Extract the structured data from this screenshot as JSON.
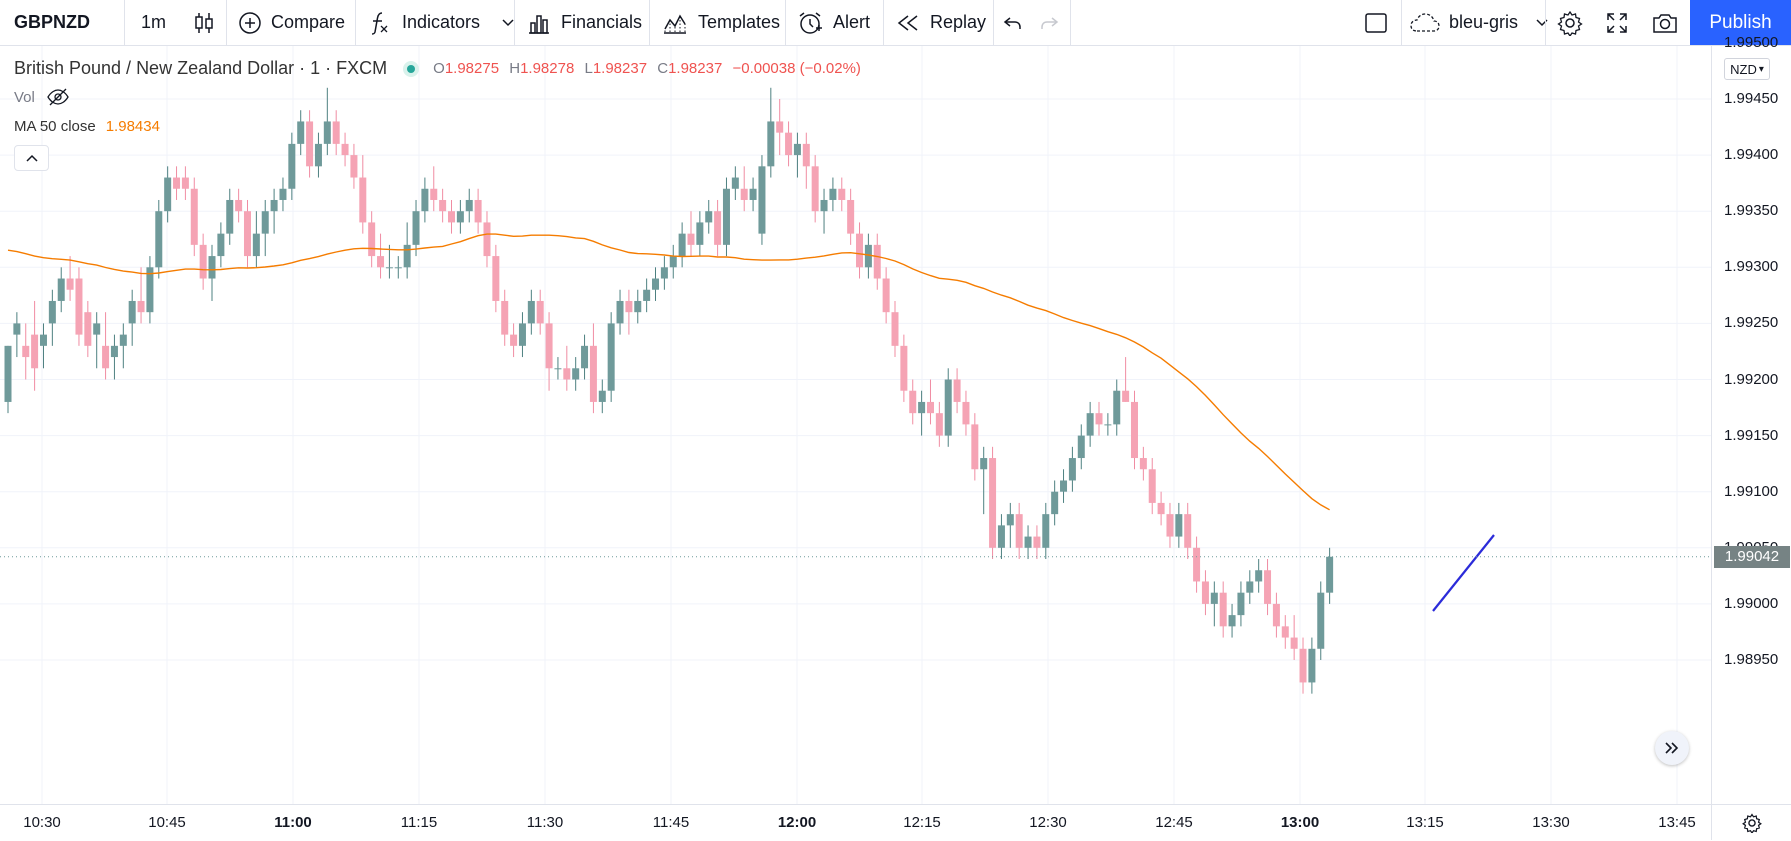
{
  "toolbar": {
    "symbol": "GBPNZD",
    "interval": "1m",
    "compare": "Compare",
    "indicators": "Indicators",
    "financials": "Financials",
    "templates": "Templates",
    "alert": "Alert",
    "replay": "Replay",
    "layout_name": "bleu-gris",
    "publish": "Publish"
  },
  "legend": {
    "title": "British Pound / New Zealand Dollar · 1 · FXCM",
    "o_label": "O",
    "o_value": "1.98275",
    "h_label": "H",
    "h_value": "1.98278",
    "l_label": "L",
    "l_value": "1.98237",
    "c_label": "C",
    "c_value": "1.98237",
    "change": "−0.00038 (−0.02%)",
    "vol_label": "Vol",
    "ma_label": "MA 50 close",
    "ma_value": "1.98434"
  },
  "price_axis": {
    "currency": "NZD",
    "current_price": "1.99042",
    "ticks": [
      "1.99500",
      "1.99450",
      "1.99400",
      "1.99350",
      "1.99300",
      "1.99250",
      "1.99200",
      "1.99150",
      "1.99100",
      "1.99050",
      "1.99000",
      "1.98950"
    ]
  },
  "time_axis": {
    "ticks": [
      "10:30",
      "10:45",
      "11:00",
      "11:15",
      "11:30",
      "11:45",
      "12:00",
      "12:15",
      "12:30",
      "12:45",
      "13:00",
      "13:15",
      "13:30",
      "13:45"
    ],
    "bold": [
      "11:00",
      "12:00",
      "13:00"
    ]
  },
  "colors": {
    "up": "#6f9a9a",
    "down": "#f5a3b4",
    "ma": "#f57c00",
    "drawing": "#2b2bd9",
    "accent": "#2962ff"
  },
  "chart_data": {
    "type": "candlestick",
    "x_label_interval": "1 minute",
    "ylim": [
      1.9889,
      1.9953
    ],
    "series": [
      {
        "name": "GBPNZD",
        "values": [
          [
            1.9918,
            1.9923,
            1.9917,
            1.9923
          ],
          [
            1.9924,
            1.9926,
            1.9922,
            1.9925
          ],
          [
            1.9923,
            1.9925,
            1.992,
            1.9922
          ],
          [
            1.9924,
            1.9927,
            1.9919,
            1.9921
          ],
          [
            1.9923,
            1.9925,
            1.9921,
            1.9924
          ],
          [
            1.9925,
            1.9928,
            1.9923,
            1.9927
          ],
          [
            1.9927,
            1.993,
            1.9926,
            1.9929
          ],
          [
            1.9929,
            1.9931,
            1.9927,
            1.9928
          ],
          [
            1.9929,
            1.993,
            1.9923,
            1.9924
          ],
          [
            1.9926,
            1.9927,
            1.9922,
            1.9923
          ],
          [
            1.9924,
            1.9926,
            1.9921,
            1.9925
          ],
          [
            1.9923,
            1.9926,
            1.992,
            1.9921
          ],
          [
            1.9922,
            1.9924,
            1.992,
            1.9923
          ],
          [
            1.9923,
            1.9925,
            1.9921,
            1.9924
          ],
          [
            1.9925,
            1.9928,
            1.9923,
            1.9927
          ],
          [
            1.9927,
            1.993,
            1.9925,
            1.9926
          ],
          [
            1.9926,
            1.9931,
            1.9925,
            1.993
          ],
          [
            1.993,
            1.9936,
            1.9929,
            1.9935
          ],
          [
            1.9935,
            1.9939,
            1.9934,
            1.9938
          ],
          [
            1.9938,
            1.9939,
            1.9936,
            1.9937
          ],
          [
            1.9938,
            1.9939,
            1.9936,
            1.9937
          ],
          [
            1.9937,
            1.9938,
            1.9931,
            1.9932
          ],
          [
            1.9932,
            1.9933,
            1.9928,
            1.9929
          ],
          [
            1.9929,
            1.9932,
            1.9927,
            1.9931
          ],
          [
            1.9931,
            1.9934,
            1.993,
            1.9933
          ],
          [
            1.9933,
            1.9937,
            1.9932,
            1.9936
          ],
          [
            1.9936,
            1.9937,
            1.9934,
            1.9935
          ],
          [
            1.9935,
            1.9936,
            1.993,
            1.9931
          ],
          [
            1.9931,
            1.9935,
            1.993,
            1.9933
          ],
          [
            1.9933,
            1.9936,
            1.9931,
            1.9935
          ],
          [
            1.9935,
            1.9937,
            1.9933,
            1.9936
          ],
          [
            1.9936,
            1.9938,
            1.9935,
            1.9937
          ],
          [
            1.9937,
            1.9942,
            1.9936,
            1.9941
          ],
          [
            1.9941,
            1.9944,
            1.994,
            1.9943
          ],
          [
            1.9943,
            1.9944,
            1.9938,
            1.9939
          ],
          [
            1.9939,
            1.9942,
            1.9938,
            1.9941
          ],
          [
            1.9941,
            1.9946,
            1.994,
            1.9943
          ],
          [
            1.9943,
            1.9944,
            1.994,
            1.9941
          ],
          [
            1.9941,
            1.9942,
            1.9939,
            1.994
          ],
          [
            1.994,
            1.9941,
            1.9937,
            1.9938
          ],
          [
            1.9938,
            1.994,
            1.9933,
            1.9934
          ],
          [
            1.9934,
            1.9935,
            1.993,
            1.9931
          ],
          [
            1.9931,
            1.9933,
            1.9929,
            1.993
          ],
          [
            1.993,
            1.9932,
            1.9929,
            1.993
          ],
          [
            1.993,
            1.9931,
            1.9929,
            1.993
          ],
          [
            1.993,
            1.9934,
            1.9929,
            1.9932
          ],
          [
            1.9932,
            1.9936,
            1.9931,
            1.9935
          ],
          [
            1.9935,
            1.9938,
            1.9934,
            1.9937
          ],
          [
            1.9937,
            1.9939,
            1.9935,
            1.9936
          ],
          [
            1.9936,
            1.9937,
            1.9934,
            1.9935
          ],
          [
            1.9935,
            1.9936,
            1.9933,
            1.9934
          ],
          [
            1.9934,
            1.9936,
            1.9933,
            1.9935
          ],
          [
            1.9935,
            1.9937,
            1.9934,
            1.9936
          ],
          [
            1.9936,
            1.9937,
            1.9933,
            1.9934
          ],
          [
            1.9934,
            1.9935,
            1.993,
            1.9931
          ],
          [
            1.9931,
            1.9932,
            1.9926,
            1.9927
          ],
          [
            1.9927,
            1.9928,
            1.9923,
            1.9924
          ],
          [
            1.9924,
            1.9925,
            1.9922,
            1.9923
          ],
          [
            1.9923,
            1.9926,
            1.9922,
            1.9925
          ],
          [
            1.9925,
            1.9928,
            1.9924,
            1.9927
          ],
          [
            1.9927,
            1.9928,
            1.9924,
            1.9925
          ],
          [
            1.9925,
            1.9926,
            1.9919,
            1.9921
          ],
          [
            1.9921,
            1.9922,
            1.992,
            1.9921
          ],
          [
            1.9921,
            1.9923,
            1.9919,
            1.992
          ],
          [
            1.992,
            1.9922,
            1.9919,
            1.9921
          ],
          [
            1.9921,
            1.9924,
            1.992,
            1.9923
          ],
          [
            1.9923,
            1.9925,
            1.9917,
            1.9918
          ],
          [
            1.9918,
            1.992,
            1.9917,
            1.9919
          ],
          [
            1.9919,
            1.9926,
            1.9918,
            1.9925
          ],
          [
            1.9925,
            1.9928,
            1.9924,
            1.9927
          ],
          [
            1.9927,
            1.9928,
            1.9924,
            1.9926
          ],
          [
            1.9926,
            1.9928,
            1.9925,
            1.9927
          ],
          [
            1.9927,
            1.9929,
            1.9926,
            1.9928
          ],
          [
            1.9928,
            1.993,
            1.9927,
            1.9929
          ],
          [
            1.9929,
            1.9931,
            1.9928,
            1.993
          ],
          [
            1.993,
            1.9932,
            1.9929,
            1.9931
          ],
          [
            1.9931,
            1.9934,
            1.993,
            1.9933
          ],
          [
            1.9933,
            1.9935,
            1.9931,
            1.9932
          ],
          [
            1.9932,
            1.9935,
            1.9931,
            1.9934
          ],
          [
            1.9934,
            1.9936,
            1.9933,
            1.9935
          ],
          [
            1.9935,
            1.9936,
            1.9931,
            1.9932
          ],
          [
            1.9932,
            1.9938,
            1.9931,
            1.9937
          ],
          [
            1.9937,
            1.9939,
            1.9936,
            1.9938
          ],
          [
            1.9937,
            1.9939,
            1.9935,
            1.9936
          ],
          [
            1.9936,
            1.9938,
            1.9935,
            1.9937
          ],
          [
            1.9933,
            1.994,
            1.9932,
            1.9939
          ],
          [
            1.9939,
            1.9946,
            1.9938,
            1.9943
          ],
          [
            1.9943,
            1.9945,
            1.994,
            1.9942
          ],
          [
            1.9942,
            1.9943,
            1.9939,
            1.994
          ],
          [
            1.994,
            1.9942,
            1.9938,
            1.9941
          ],
          [
            1.9941,
            1.9942,
            1.9937,
            1.9939
          ],
          [
            1.9939,
            1.994,
            1.9934,
            1.9935
          ],
          [
            1.9935,
            1.9937,
            1.9933,
            1.9936
          ],
          [
            1.9936,
            1.9938,
            1.9935,
            1.9937
          ],
          [
            1.9937,
            1.9938,
            1.9935,
            1.9936
          ],
          [
            1.9936,
            1.9937,
            1.9932,
            1.9933
          ],
          [
            1.9933,
            1.9934,
            1.9929,
            1.993
          ],
          [
            1.993,
            1.9933,
            1.9929,
            1.9932
          ],
          [
            1.9932,
            1.9933,
            1.9928,
            1.9929
          ],
          [
            1.9929,
            1.993,
            1.9925,
            1.9926
          ],
          [
            1.9926,
            1.9927,
            1.9922,
            1.9923
          ],
          [
            1.9923,
            1.9924,
            1.9918,
            1.9919
          ],
          [
            1.9919,
            1.992,
            1.9916,
            1.9917
          ],
          [
            1.9917,
            1.9919,
            1.9915,
            1.9918
          ],
          [
            1.9918,
            1.992,
            1.9916,
            1.9917
          ],
          [
            1.9917,
            1.9918,
            1.9914,
            1.9915
          ],
          [
            1.9915,
            1.9921,
            1.9914,
            1.992
          ],
          [
            1.992,
            1.9921,
            1.9917,
            1.9918
          ],
          [
            1.9918,
            1.9919,
            1.9915,
            1.9916
          ],
          [
            1.9916,
            1.9917,
            1.9911,
            1.9912
          ],
          [
            1.9912,
            1.9914,
            1.9908,
            1.9913
          ],
          [
            1.9913,
            1.9914,
            1.9904,
            1.9905
          ],
          [
            1.9905,
            1.9908,
            1.9904,
            1.9907
          ],
          [
            1.9907,
            1.9909,
            1.9905,
            1.9908
          ],
          [
            1.9908,
            1.9909,
            1.9904,
            1.9905
          ],
          [
            1.9905,
            1.9907,
            1.9904,
            1.9906
          ],
          [
            1.9906,
            1.9907,
            1.9904,
            1.9905
          ],
          [
            1.9905,
            1.9909,
            1.9904,
            1.9908
          ],
          [
            1.9908,
            1.9911,
            1.9907,
            1.991
          ],
          [
            1.991,
            1.9912,
            1.9909,
            1.9911
          ],
          [
            1.9911,
            1.9914,
            1.991,
            1.9913
          ],
          [
            1.9913,
            1.9916,
            1.9912,
            1.9915
          ],
          [
            1.9915,
            1.9918,
            1.9914,
            1.9917
          ],
          [
            1.9917,
            1.9918,
            1.9915,
            1.9916
          ],
          [
            1.9916,
            1.9917,
            1.9915,
            1.9916
          ],
          [
            1.9916,
            1.992,
            1.9915,
            1.9919
          ],
          [
            1.9919,
            1.9922,
            1.9918,
            1.9918
          ],
          [
            1.9918,
            1.9919,
            1.9912,
            1.9913
          ],
          [
            1.9913,
            1.9914,
            1.9911,
            1.9912
          ],
          [
            1.9912,
            1.9913,
            1.9908,
            1.9909
          ],
          [
            1.9909,
            1.991,
            1.9907,
            1.9908
          ],
          [
            1.9908,
            1.9909,
            1.9905,
            1.9906
          ],
          [
            1.9906,
            1.9909,
            1.9905,
            1.9908
          ],
          [
            1.9908,
            1.9909,
            1.9904,
            1.9905
          ],
          [
            1.9905,
            1.9906,
            1.9901,
            1.9902
          ],
          [
            1.9902,
            1.9903,
            1.9899,
            1.99
          ],
          [
            1.99,
            1.9902,
            1.9898,
            1.9901
          ],
          [
            1.9901,
            1.9902,
            1.9897,
            1.9898
          ],
          [
            1.9898,
            1.99,
            1.9897,
            1.9899
          ],
          [
            1.9899,
            1.9902,
            1.9898,
            1.9901
          ],
          [
            1.9901,
            1.9903,
            1.99,
            1.9902
          ],
          [
            1.9902,
            1.9904,
            1.9901,
            1.9903
          ],
          [
            1.9903,
            1.9904,
            1.9899,
            1.99
          ],
          [
            1.99,
            1.9901,
            1.9897,
            1.9898
          ],
          [
            1.9898,
            1.9899,
            1.9896,
            1.9897
          ],
          [
            1.9897,
            1.9899,
            1.9895,
            1.9896
          ],
          [
            1.9896,
            1.9897,
            1.9892,
            1.9893
          ],
          [
            1.9893,
            1.9897,
            1.9892,
            1.9896
          ],
          [
            1.9896,
            1.9902,
            1.9895,
            1.9901
          ],
          [
            1.9901,
            1.9905,
            1.99,
            1.99042
          ]
        ]
      },
      {
        "name": "MA 50 close"
      }
    ]
  }
}
